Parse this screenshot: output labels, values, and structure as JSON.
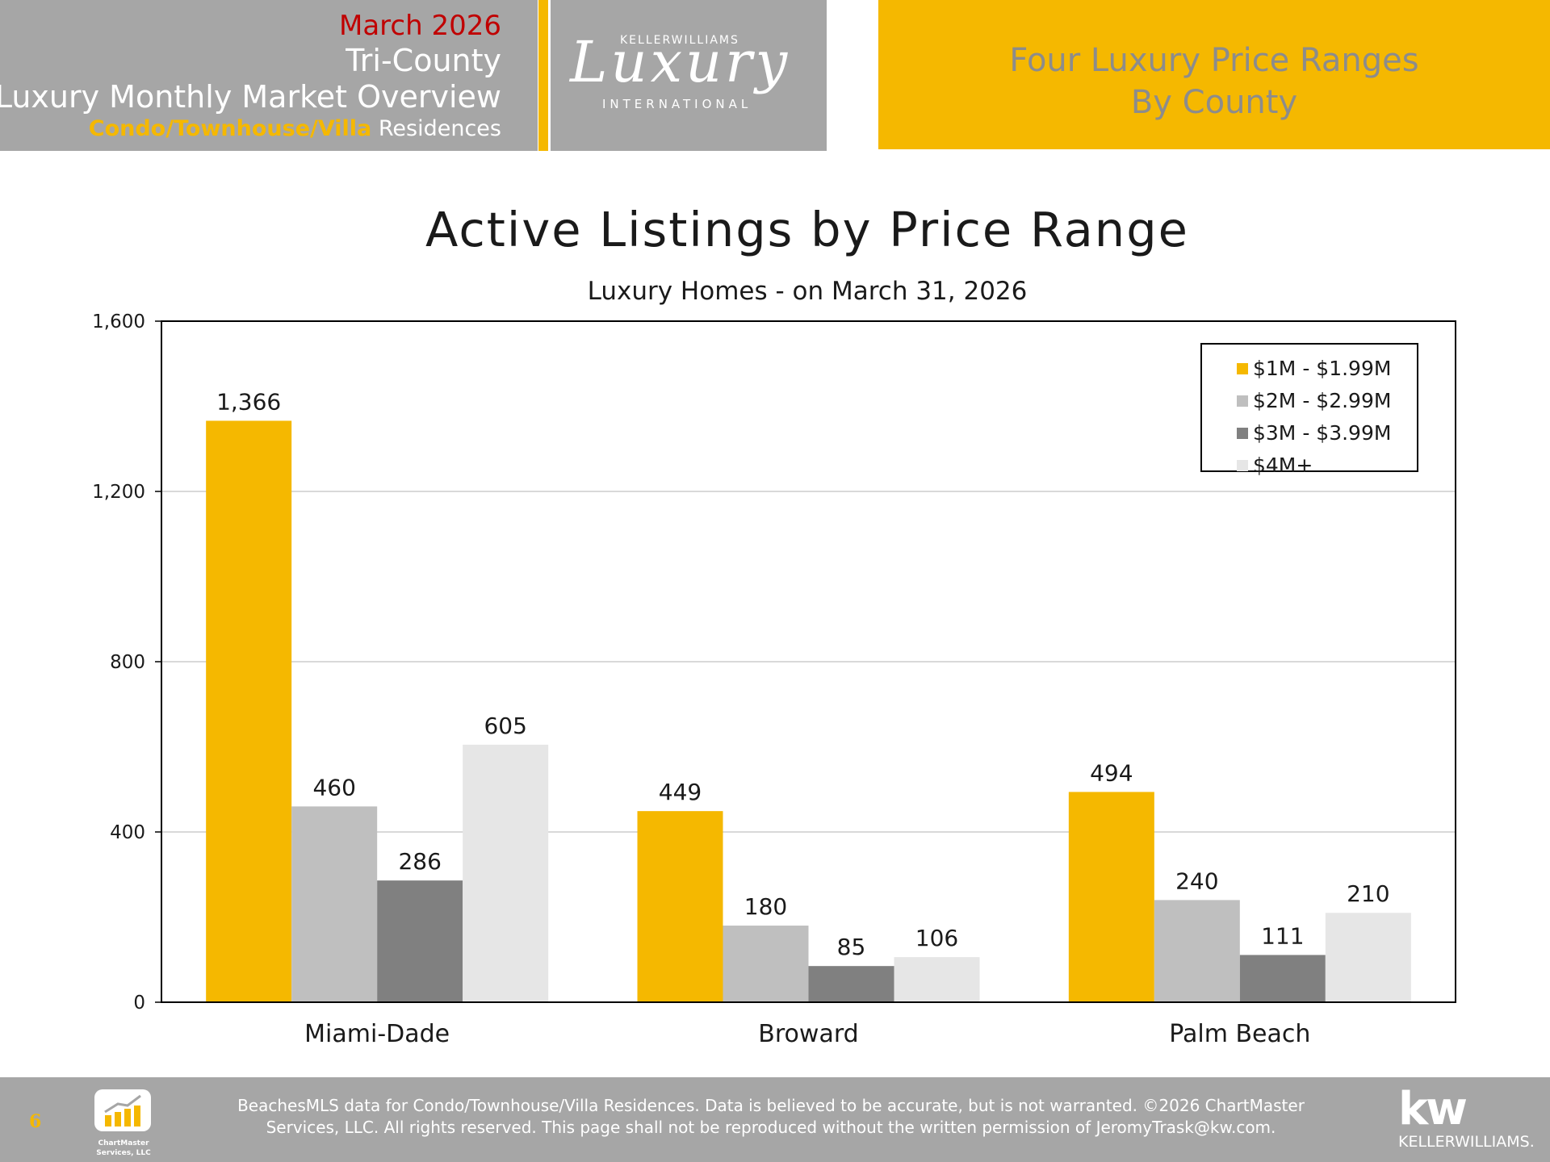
{
  "header": {
    "date": "March 2026",
    "region": "Tri-County",
    "report": "Luxury Monthly Market Overview",
    "segment": "Condo/Townhouse/Villa",
    "segment_suffix": "Residences",
    "logo_top": "KELLERWILLIAMS",
    "logo_script": "Luxury",
    "logo_bottom": "INTERNATIONAL",
    "section_line1": "Four Luxury Price Ranges",
    "section_line2": "By County"
  },
  "colors": {
    "gold": "#f5b800",
    "series": [
      "#f5b800",
      "#bfbfbf",
      "#808080",
      "#e6e6e6"
    ],
    "date_red": "#c00000",
    "header_gray": "#a6a6a6"
  },
  "chart_data": {
    "type": "bar",
    "title": "Active Listings by Price Range",
    "subtitle": "Luxury Homes - on March 31, 2026",
    "categories": [
      "Miami-Dade",
      "Broward",
      "Palm Beach"
    ],
    "series": [
      {
        "name": "$1M - $1.99M",
        "values": [
          1366,
          449,
          494
        ]
      },
      {
        "name": "$2M - $2.99M",
        "values": [
          460,
          180,
          240
        ]
      },
      {
        "name": "$3M - $3.99M",
        "values": [
          286,
          85,
          111
        ]
      },
      {
        "name": "$4M+",
        "values": [
          605,
          106,
          210
        ]
      }
    ],
    "ylim": [
      0,
      1600
    ],
    "yticks": [
      0,
      400,
      800,
      1200,
      1600
    ],
    "ytick_labels": [
      "0",
      "400",
      "800",
      "1,200",
      "1,600"
    ],
    "value_labels": [
      [
        "1,366",
        "449",
        "494"
      ],
      [
        "460",
        "180",
        "240"
      ],
      [
        "286",
        "85",
        "111"
      ],
      [
        "605",
        "106",
        "210"
      ]
    ],
    "grid": true,
    "legend_position": "top-right"
  },
  "footer": {
    "page_number": "6",
    "disclaimer_line1": "BeachesMLS data for Condo/Townhouse/Villa Residences.  Data is believed to be accurate, but is not warranted.   ©2026  ChartMaster",
    "disclaimer_line2": "Services, LLC.  All rights reserved. This page shall not be reproduced without the written permission of JeromyTrask@kw.com.",
    "cm_logo_line1": "ChartMaster",
    "cm_logo_line2": "Services, LLC",
    "kw_mark": "kw",
    "kw_name": "KELLERWILLIAMS."
  }
}
